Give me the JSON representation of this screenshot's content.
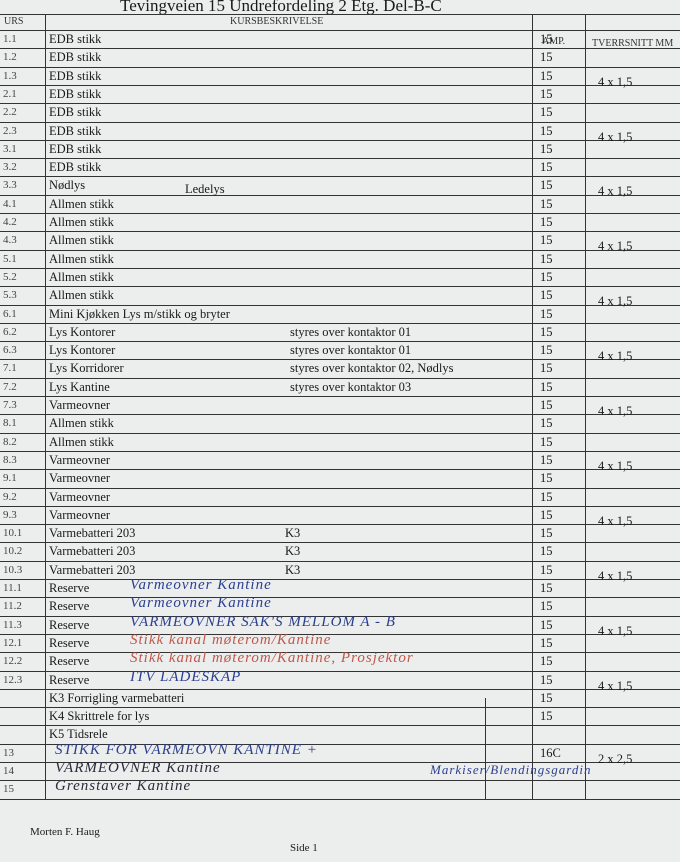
{
  "header": {
    "title": "Tevingveien 15 Undrefordeling 2 Etg. Del-B-C"
  },
  "table": {
    "columns": [
      "URS",
      "KURSBESKRIVELSE",
      "AMP.",
      "TVERRSNITT MM"
    ],
    "rows": [
      {
        "kurs": "1.1",
        "desc": "EDB stikk",
        "amp": "15"
      },
      {
        "kurs": "1.2",
        "desc": "EDB stikk",
        "amp": "15"
      },
      {
        "kurs": "1.3",
        "desc": "EDB stikk",
        "amp": "15",
        "cable": "4 x 1,5"
      },
      {
        "kurs": "2.1",
        "desc": "EDB stikk",
        "amp": "15"
      },
      {
        "kurs": "2.2",
        "desc": "EDB stikk",
        "amp": "15"
      },
      {
        "kurs": "2.3",
        "desc": "EDB stikk",
        "amp": "15",
        "cable": "4 x 1,5"
      },
      {
        "kurs": "3.1",
        "desc": "EDB stikk",
        "amp": "15"
      },
      {
        "kurs": "3.2",
        "desc": "EDB stikk",
        "amp": "15"
      },
      {
        "kurs": "3.3",
        "desc": "Nødlys",
        "note": "Ledelys",
        "amp": "15",
        "cable": "4 x 1,5"
      },
      {
        "kurs": "4.1",
        "desc": "Allmen stikk",
        "amp": "15"
      },
      {
        "kurs": "4.2",
        "desc": "Allmen stikk",
        "amp": "15"
      },
      {
        "kurs": "4.3",
        "desc": "Allmen stikk",
        "amp": "15",
        "cable": "4 x 1,5"
      },
      {
        "kurs": "5.1",
        "desc": "Allmen stikk",
        "amp": "15"
      },
      {
        "kurs": "5.2",
        "desc": "Allmen stikk",
        "amp": "15"
      },
      {
        "kurs": "5.3",
        "desc": "Allmen stikk",
        "amp": "15",
        "cable": "4 x 1,5"
      },
      {
        "kurs": "6.1",
        "desc": "Mini Kjøkken Lys m/stikk og bryter",
        "amp": "15"
      },
      {
        "kurs": "6.2",
        "desc": "Lys Kontorer",
        "note": "styres over kontaktor 01",
        "amp": "15"
      },
      {
        "kurs": "6.3",
        "desc": "Lys Kontorer",
        "note": "styres over kontaktor 01",
        "amp": "15",
        "cable": "4 x 1,5"
      },
      {
        "kurs": "7.1",
        "desc": "Lys Korridorer",
        "note": "styres over kontaktor 02, Nødlys",
        "amp": "15"
      },
      {
        "kurs": "7.2",
        "desc": "Lys Kantine",
        "note": "styres over kontaktor 03",
        "amp": "15"
      },
      {
        "kurs": "7.3",
        "desc": "Varmeovner",
        "amp": "15",
        "cable": "4 x 1,5"
      },
      {
        "kurs": "8.1",
        "desc": "Allmen stikk",
        "amp": "15"
      },
      {
        "kurs": "8.2",
        "desc": "Allmen stikk",
        "amp": "15"
      },
      {
        "kurs": "8.3",
        "desc": "Varmeovner",
        "amp": "15",
        "cable": "4 x 1,5"
      },
      {
        "kurs": "9.1",
        "desc": "Varmeovner",
        "amp": "15"
      },
      {
        "kurs": "9.2",
        "desc": "Varmeovner",
        "amp": "15"
      },
      {
        "kurs": "9.3",
        "desc": "Varmeovner",
        "amp": "15",
        "cable": "4 x 1,5"
      },
      {
        "kurs": "10.1",
        "desc": "Varmebatteri 203",
        "note": "K3",
        "amp": "15"
      },
      {
        "kurs": "10.2",
        "desc": "Varmebatteri 203",
        "note": "K3",
        "amp": "15"
      },
      {
        "kurs": "10.3",
        "desc": "Varmebatteri 203",
        "note": "K3",
        "amp": "15",
        "cable": "4 x 1,5"
      },
      {
        "kurs": "11.1",
        "desc": "Reserve",
        "hand": "Varmeovner Kantine",
        "ink": "blue",
        "amp": "15"
      },
      {
        "kurs": "11.2",
        "desc": "Reserve",
        "hand": "Varmeovner Kantine",
        "ink": "blue",
        "amp": "15"
      },
      {
        "kurs": "11.3",
        "desc": "Reserve",
        "hand": "VARMEOVNER SAK'S MELLOM A - B",
        "ink": "blue",
        "amp": "15",
        "cable": "4 x 1,5"
      },
      {
        "kurs": "12.1",
        "desc": "Reserve",
        "hand": "Stikk kanal møterom/Kantine",
        "ink": "red",
        "amp": "15"
      },
      {
        "kurs": "12.2",
        "desc": "Reserve",
        "hand": "Stikk kanal møterom/Kantine, Prosjektor",
        "ink": "red",
        "amp": "15"
      },
      {
        "kurs": "12.3",
        "desc": "Reserve",
        "hand": "ITV LADESKAP",
        "ink": "blue",
        "amp": "15",
        "cable": "4 x 1,5"
      },
      {
        "desc": "K3 Forrigling varmebatteri",
        "amp": "15"
      },
      {
        "desc": "K4 Skrittrele for lys",
        "amp": "15"
      },
      {
        "desc": "K5 Tidsrele"
      },
      {
        "kurs": "13",
        "hand": "STIKK FOR VARMEOVN KANTINE +",
        "ink": "blue",
        "amp": "16C",
        "cable": "2 x 2,5"
      },
      {
        "kurs": "14",
        "hand": "VARMEOVNER Kantine",
        "ink": "dark"
      },
      {
        "kurs": "15",
        "hand": "Grenstaver Kantine",
        "ink": "dark"
      }
    ],
    "annotation": "Markiser/Blendingsgardin"
  },
  "footer": {
    "author": "Morten F. Haug",
    "page": "Side 1"
  }
}
